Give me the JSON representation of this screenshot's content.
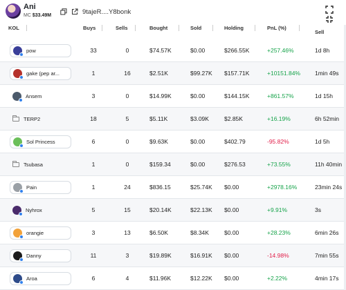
{
  "token": {
    "name": "Ani",
    "mc_label": "MC",
    "mc_value": "$33.49M",
    "address": "9tajeR....Y8bonk"
  },
  "columns": {
    "kol": "KOL",
    "buys": "Buys",
    "sells": "Sells",
    "bought": "Bought",
    "sold": "Sold",
    "holding": "Holding",
    "pnl": "PnL (%)",
    "sell": "Sell"
  },
  "colors": {
    "positive": "#16a34a",
    "negative": "#e11d48",
    "badge": "#2f80ed"
  },
  "rows": [
    {
      "name": "pow",
      "buys": "33",
      "sells": "0",
      "bought": "$74.57K",
      "sold": "$0.00",
      "holding": "$266.55K",
      "pnl": "+257.46%",
      "time": "1d 8h",
      "avatar": "#3a3f99",
      "pill": true
    },
    {
      "name": "gake (pep ar...",
      "buys": "1",
      "sells": "16",
      "bought": "$2.51K",
      "sold": "$99.27K",
      "holding": "$157.71K",
      "pnl": "+10151.84%",
      "time": "1min 49s",
      "avatar": "#b5312b",
      "pill": true
    },
    {
      "name": "Ansem",
      "buys": "3",
      "sells": "0",
      "bought": "$14.99K",
      "sold": "$0.00",
      "holding": "$144.15K",
      "pnl": "+861.57%",
      "time": "1d 15h",
      "avatar": "#4c5a6b",
      "pill": false
    },
    {
      "name": "TERP2",
      "buys": "18",
      "sells": "5",
      "bought": "$5.11K",
      "sold": "$3.09K",
      "holding": "$2.85K",
      "pnl": "+16.19%",
      "time": "6h 52min",
      "avatar": "",
      "pill": false
    },
    {
      "name": "Sol Princess",
      "buys": "6",
      "sells": "0",
      "bought": "$9.63K",
      "sold": "$0.00",
      "holding": "$402.79",
      "pnl": "-95.82%",
      "time": "1d 5h",
      "avatar": "#6bbf59",
      "pill": true
    },
    {
      "name": "Tsubasa",
      "buys": "1",
      "sells": "0",
      "bought": "$159.34",
      "sold": "$0.00",
      "holding": "$276.53",
      "pnl": "+73.55%",
      "time": "11h 40min",
      "avatar": "",
      "pill": false
    },
    {
      "name": "Pain",
      "buys": "1",
      "sells": "24",
      "bought": "$836.15",
      "sold": "$25.74K",
      "holding": "$0.00",
      "pnl": "+2978.16%",
      "time": "23min 24s",
      "avatar": "#9aa0a6",
      "pill": true
    },
    {
      "name": "Nyhrox",
      "buys": "5",
      "sells": "15",
      "bought": "$20.14K",
      "sold": "$22.13K",
      "holding": "$0.00",
      "pnl": "+9.91%",
      "time": "3s",
      "avatar": "#4a2b6b",
      "pill": false
    },
    {
      "name": "orangie",
      "buys": "3",
      "sells": "13",
      "bought": "$6.50K",
      "sold": "$8.34K",
      "holding": "$0.00",
      "pnl": "+28.23%",
      "time": "6min 26s",
      "avatar": "#f2a23a",
      "pill": true
    },
    {
      "name": "Danny",
      "buys": "11",
      "sells": "3",
      "bought": "$19.89K",
      "sold": "$16.91K",
      "holding": "$0.00",
      "pnl": "-14.98%",
      "time": "7min 55s",
      "avatar": "#1c1c1c",
      "pill": true
    },
    {
      "name": "Aroa",
      "buys": "6",
      "sells": "4",
      "bought": "$11.96K",
      "sold": "$12.22K",
      "holding": "$0.00",
      "pnl": "+2.22%",
      "time": "4min 17s",
      "avatar": "#2e4b8a",
      "pill": true
    }
  ]
}
